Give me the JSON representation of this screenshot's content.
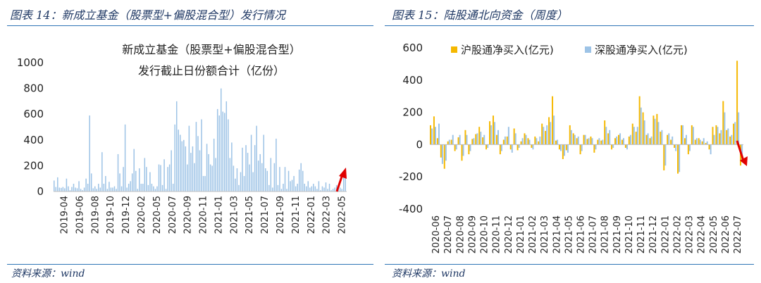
{
  "left": {
    "panel_title": "图表 14：新成立基金（股票型+偏股混合型）发行情况",
    "source": "资料来源：wind",
    "chart_data": {
      "type": "bar",
      "title_lines": [
        "新成立基金（股票型+偏股混合型）",
        "发行截止日份额合计（亿份）"
      ],
      "xlabel": "",
      "ylabel": "",
      "ylim": [
        0,
        1000
      ],
      "yticks": [
        "0",
        "200",
        "400",
        "600",
        "800",
        "1000"
      ],
      "xticks": [
        "2019-04",
        "2019-06",
        "2019-08",
        "2019-10",
        "2019-12",
        "2020-02",
        "2020-05",
        "2020-07",
        "2020-09",
        "2020-11",
        "2021-01",
        "2021-03",
        "2021-05",
        "2021-07",
        "2021-09",
        "2021-11",
        "2022-01",
        "2022-03",
        "2022-05"
      ],
      "color": "#9dc3e6",
      "values": [
        85,
        35,
        110,
        30,
        28,
        35,
        25,
        100,
        40,
        10,
        35,
        60,
        30,
        25,
        80,
        20,
        10,
        30,
        100,
        60,
        590,
        140,
        25,
        40,
        20,
        60,
        30,
        305,
        60,
        120,
        20,
        75,
        30,
        30,
        40,
        20,
        290,
        140,
        40,
        190,
        520,
        30,
        60,
        80,
        140,
        330,
        160,
        20,
        180,
        60,
        60,
        260,
        190,
        50,
        150,
        60,
        40,
        20,
        40,
        210,
        205,
        50,
        250,
        20,
        190,
        210,
        320,
        60,
        520,
        700,
        480,
        440,
        390,
        400,
        350,
        210,
        510,
        300,
        350,
        220,
        540,
        430,
        320,
        560,
        120,
        120,
        370,
        290,
        210,
        200,
        410,
        260,
        640,
        590,
        800,
        620,
        610,
        700,
        560,
        260,
        380,
        200,
        100,
        180,
        50,
        150,
        340,
        120,
        360,
        300,
        210,
        440,
        150,
        360,
        510,
        240,
        290,
        220,
        440,
        180,
        160,
        50,
        260,
        30,
        220,
        410,
        50,
        190,
        20,
        60,
        190,
        20,
        160,
        80,
        90,
        120,
        40,
        60,
        170,
        220,
        160,
        60,
        40,
        80,
        30,
        40,
        60,
        40,
        20,
        80,
        10,
        40,
        30,
        70,
        20,
        60,
        10,
        20,
        30,
        50,
        15,
        30,
        20,
        120,
        180
      ]
    }
  },
  "right": {
    "panel_title": "图表 15：陆股通北向资金（周度）",
    "source": "资料来源：wind",
    "chart_data": {
      "type": "bar",
      "xlabel": "",
      "ylabel": "",
      "ylim": [
        -400,
        600
      ],
      "yticks": [
        "-400",
        "-200",
        "0",
        "200",
        "400",
        "600"
      ],
      "xticks": [
        "2020-06",
        "2020-07",
        "2020-08",
        "2020-09",
        "2020-10",
        "2020-11",
        "2020-12",
        "2021-01",
        "2021-02",
        "2021-03",
        "2021-04",
        "2021-05",
        "2021-06",
        "2021-07",
        "2021-08",
        "2021-09",
        "2021-10",
        "2021-11",
        "2021-12",
        "2022-01",
        "2022-02",
        "2022-03",
        "2022-04",
        "2022-05",
        "2022-06",
        "2022-07"
      ],
      "series": [
        {
          "name": "沪股通净买入(亿元)",
          "color": "#f5b800",
          "values": [
            120,
            175,
            40,
            -80,
            -150,
            20,
            30,
            -40,
            45,
            -100,
            90,
            -60,
            35,
            65,
            110,
            45,
            -30,
            145,
            180,
            60,
            -60,
            30,
            50,
            -30,
            100,
            -35,
            20,
            70,
            40,
            -20,
            50,
            20,
            130,
            85,
            170,
            300,
            25,
            -30,
            -90,
            -35,
            120,
            70,
            40,
            -60,
            60,
            35,
            50,
            -50,
            30,
            25,
            150,
            70,
            -30,
            40,
            60,
            30,
            -20,
            50,
            130,
            80,
            300,
            200,
            60,
            40,
            180,
            190,
            80,
            -160,
            60,
            30,
            -20,
            -180,
            120,
            40,
            -60,
            120,
            30,
            40,
            20,
            10,
            -30,
            110,
            120,
            70,
            270,
            90,
            50,
            130,
            520,
            -130
          ]
        },
        {
          "name": "深股通净买入(亿元)",
          "color": "#9dc3e6",
          "values": [
            100,
            110,
            130,
            -120,
            -100,
            30,
            60,
            -30,
            60,
            -70,
            60,
            -40,
            40,
            70,
            80,
            60,
            -20,
            120,
            140,
            90,
            -40,
            50,
            110,
            -50,
            70,
            -20,
            40,
            60,
            30,
            -30,
            40,
            50,
            110,
            120,
            140,
            180,
            30,
            -40,
            -70,
            -50,
            90,
            60,
            50,
            -40,
            60,
            40,
            40,
            -30,
            40,
            30,
            110,
            90,
            -20,
            50,
            70,
            40,
            -30,
            60,
            110,
            110,
            230,
            150,
            70,
            50,
            160,
            140,
            90,
            -130,
            70,
            50,
            -40,
            -170,
            120,
            60,
            -40,
            110,
            40,
            30,
            40,
            20,
            -60,
            60,
            110,
            90,
            200,
            100,
            60,
            140,
            200,
            -100
          ]
        }
      ]
    }
  }
}
